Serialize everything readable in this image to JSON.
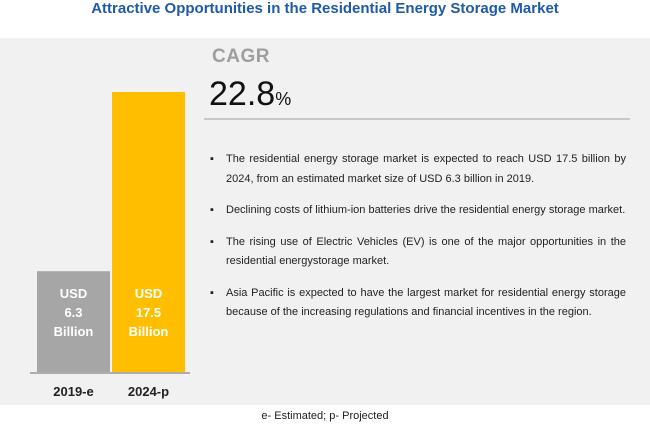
{
  "title": "Attractive Opportunities in the Residential Energy Storage Market",
  "cagr": {
    "label": "CAGR",
    "value": "22.8",
    "unit": "%"
  },
  "bullets": [
    "The residential energy storage market is expected to reach USD 17.5 billion by 2024, from an estimated market size of USD 6.3 billion in 2019.",
    "Declining costs of lithium-ion batteries drive the residential energy storage market.",
    "The rising use of Electric Vehicles (EV) is one of the major opportunities in the residential energystorage market.",
    "Asia Pacific is expected to have the largest market for residential energy storage because of the increasing regulations and financial incentives in the region."
  ],
  "bullet_symbol": "▪",
  "footnote": "e- Estimated; p- Projected",
  "chart_data": {
    "type": "bar",
    "title": "",
    "xlabel": "",
    "ylabel": "",
    "categories": [
      "2019-e",
      "2024-p"
    ],
    "values": [
      6.3,
      17.5
    ],
    "value_labels": [
      [
        "USD",
        "6.3",
        "Billion"
      ],
      [
        "USD",
        "17.5",
        "Billion"
      ]
    ],
    "colors": [
      "#a6a6a6",
      "#ffbf00"
    ],
    "ylim": [
      0,
      17.5
    ],
    "grid": false,
    "legend": "none"
  }
}
